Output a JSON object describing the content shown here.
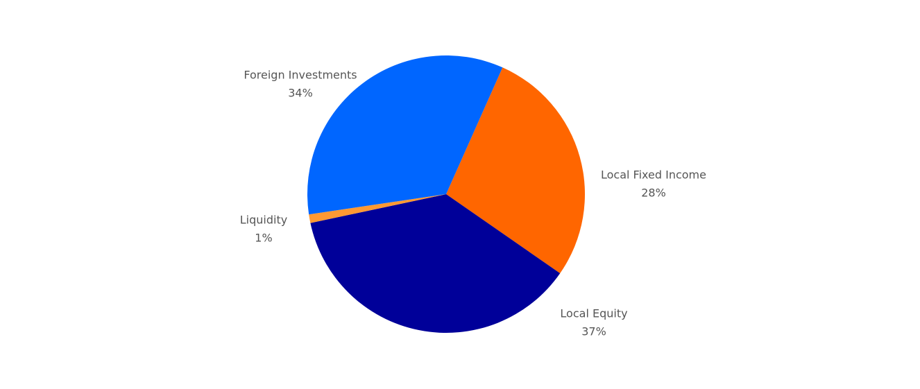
{
  "chart_data": {
    "type": "pie",
    "categories": [
      "Local Fixed Income",
      "Local Equity",
      "Liquidity",
      "Foreign Investments"
    ],
    "values": [
      28,
      37,
      1,
      34
    ],
    "value_labels": [
      "28%",
      "37%",
      "1%",
      "34%"
    ],
    "colors": [
      "#ff6600",
      "#000099",
      "#ff9933",
      "#0066ff"
    ]
  }
}
